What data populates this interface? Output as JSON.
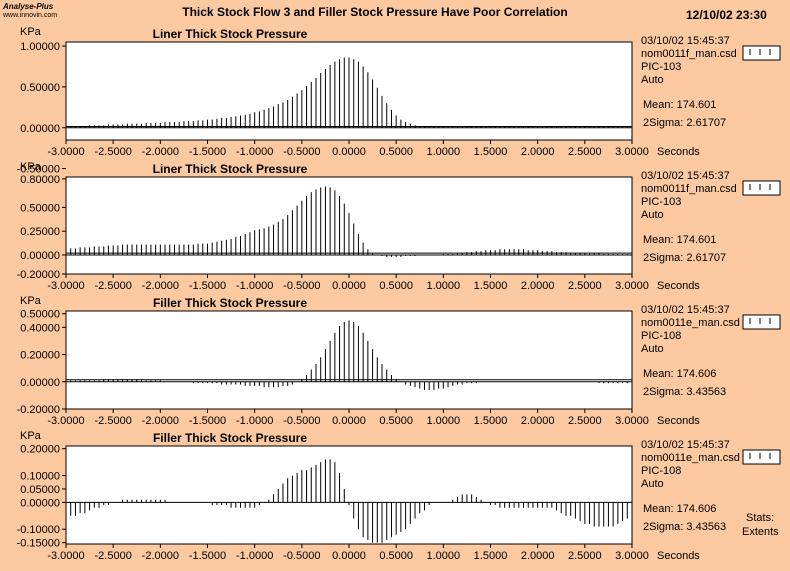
{
  "header": {
    "logo_line1": "Analyse-Plus",
    "logo_line2": "www.innovin.com",
    "title": "Thick Stock Flow 3 and Filler Stock Pressure Have Poor Correlation",
    "datetime": "12/10/02 23:30"
  },
  "footer": {
    "stats_label": "Stats:",
    "extents_label": "Extents"
  },
  "chart_data": [
    {
      "type": "bar",
      "title": "Liner Thick Stock Pressure",
      "ylabel": "KPa",
      "xlabel": "Seconds",
      "ylim": [
        -0.15,
        1.05
      ],
      "yticks": [
        "1.00000",
        "0.50000",
        "0.00000",
        "-0.50000"
      ],
      "ytick_values": [
        1.0,
        0.5,
        0.0,
        -0.5
      ],
      "xticks": [
        "-3.0000",
        "-2.5000",
        "-2.0000",
        "-1.5000",
        "-1.0000",
        "-0.5000",
        "0.0000",
        "0.5000",
        "1.0000",
        "1.5000",
        "2.0000",
        "2.5000",
        "3.0000"
      ],
      "x": [
        -2.95,
        -2.9,
        -2.85,
        -2.8,
        -2.75,
        -2.7,
        -2.65,
        -2.6,
        -2.55,
        -2.5,
        -2.45,
        -2.4,
        -2.35,
        -2.3,
        -2.25,
        -2.2,
        -2.15,
        -2.1,
        -2.05,
        -2.0,
        -1.95,
        -1.9,
        -1.85,
        -1.8,
        -1.75,
        -1.7,
        -1.65,
        -1.6,
        -1.55,
        -1.5,
        -1.45,
        -1.4,
        -1.35,
        -1.3,
        -1.25,
        -1.2,
        -1.15,
        -1.1,
        -1.05,
        -1.0,
        -0.95,
        -0.9,
        -0.85,
        -0.8,
        -0.75,
        -0.7,
        -0.65,
        -0.6,
        -0.55,
        -0.5,
        -0.45,
        -0.4,
        -0.35,
        -0.3,
        -0.25,
        -0.2,
        -0.15,
        -0.1,
        -0.05,
        0.0,
        0.05,
        0.1,
        0.15,
        0.2,
        0.25,
        0.3,
        0.35,
        0.4,
        0.45,
        0.5,
        0.55,
        0.6,
        0.65,
        0.7,
        0.75,
        0.8,
        0.85,
        0.9,
        0.95,
        1.0,
        1.05,
        1.1,
        1.15,
        1.2,
        1.25,
        1.3,
        1.35,
        1.4,
        1.45,
        1.5,
        1.55,
        1.6,
        1.65,
        1.7,
        1.75,
        1.8,
        1.85,
        1.9,
        1.95,
        2.0,
        2.05,
        2.1,
        2.15,
        2.2,
        2.25,
        2.3,
        2.35,
        2.4,
        2.45,
        2.5,
        2.55,
        2.6,
        2.65,
        2.7,
        2.75,
        2.8,
        2.85,
        2.9,
        2.95
      ],
      "values": [
        0.02,
        0.02,
        0.02,
        0.02,
        0.03,
        0.03,
        0.03,
        0.03,
        0.04,
        0.04,
        0.04,
        0.04,
        0.05,
        0.05,
        0.05,
        0.05,
        0.06,
        0.06,
        0.06,
        0.06,
        0.07,
        0.07,
        0.07,
        0.07,
        0.08,
        0.08,
        0.08,
        0.09,
        0.09,
        0.1,
        0.1,
        0.11,
        0.12,
        0.12,
        0.13,
        0.14,
        0.15,
        0.16,
        0.17,
        0.19,
        0.2,
        0.22,
        0.24,
        0.26,
        0.29,
        0.31,
        0.34,
        0.38,
        0.42,
        0.46,
        0.51,
        0.56,
        0.61,
        0.67,
        0.72,
        0.77,
        0.81,
        0.84,
        0.86,
        0.86,
        0.84,
        0.81,
        0.75,
        0.68,
        0.59,
        0.49,
        0.39,
        0.3,
        0.22,
        0.15,
        0.1,
        0.07,
        0.05,
        0.03,
        0.02,
        0.02,
        0.01,
        0.01,
        0.01,
        0.01,
        0.01,
        0.01,
        0.01,
        0.01,
        0.01,
        0.01,
        0.01,
        0.01,
        0.01,
        0.01,
        0.01,
        0.01,
        0.01,
        0.01,
        0.01,
        0.01,
        0.01,
        0.01,
        0.01,
        0.01,
        0.01,
        0.01,
        0.01,
        0.01,
        0.01,
        0.01,
        0.01,
        0.01,
        0.01,
        0.01,
        0.01,
        0.01,
        0.01,
        0.01,
        0.01,
        0.01,
        0.01,
        0.01,
        0.01
      ],
      "reference_line": 0.015,
      "info": {
        "timestamp": "03/10/02  15:45:37",
        "file": "nom0011f_man.csd",
        "tag": "PIC-103",
        "mode": "Auto",
        "mean": "Mean: 174.601",
        "sigma": "2Sigma: 2.61707"
      }
    },
    {
      "type": "bar",
      "title": "Liner Thick Stock Pressure",
      "ylabel": "KPa",
      "xlabel": "Seconds",
      "ylim": [
        -0.2,
        0.82
      ],
      "yticks": [
        "0.80000",
        "0.50000",
        "0.25000",
        "0.00000",
        "-0.20000"
      ],
      "ytick_values": [
        0.8,
        0.5,
        0.25,
        0.0,
        -0.2
      ],
      "xticks": [
        "-3.0000",
        "-2.5000",
        "-2.0000",
        "-1.5000",
        "-1.0000",
        "-0.5000",
        "0.0000",
        "0.5000",
        "1.0000",
        "1.5000",
        "2.0000",
        "2.5000",
        "3.0000"
      ],
      "x": [
        -2.95,
        -2.9,
        -2.85,
        -2.8,
        -2.75,
        -2.7,
        -2.65,
        -2.6,
        -2.55,
        -2.5,
        -2.45,
        -2.4,
        -2.35,
        -2.3,
        -2.25,
        -2.2,
        -2.15,
        -2.1,
        -2.05,
        -2.0,
        -1.95,
        -1.9,
        -1.85,
        -1.8,
        -1.75,
        -1.7,
        -1.65,
        -1.6,
        -1.55,
        -1.5,
        -1.45,
        -1.4,
        -1.35,
        -1.3,
        -1.25,
        -1.2,
        -1.15,
        -1.1,
        -1.05,
        -1.0,
        -0.95,
        -0.9,
        -0.85,
        -0.8,
        -0.75,
        -0.7,
        -0.65,
        -0.6,
        -0.55,
        -0.5,
        -0.45,
        -0.4,
        -0.35,
        -0.3,
        -0.25,
        -0.2,
        -0.15,
        -0.1,
        -0.05,
        0.0,
        0.05,
        0.1,
        0.15,
        0.2,
        0.25,
        0.3,
        0.35,
        0.4,
        0.45,
        0.5,
        0.55,
        0.6,
        0.65,
        0.7,
        0.75,
        0.8,
        0.85,
        0.9,
        0.95,
        1.0,
        1.05,
        1.1,
        1.15,
        1.2,
        1.25,
        1.3,
        1.35,
        1.4,
        1.45,
        1.5,
        1.55,
        1.6,
        1.65,
        1.7,
        1.75,
        1.8,
        1.85,
        1.9,
        1.95,
        2.0,
        2.05,
        2.1,
        2.15,
        2.2,
        2.25,
        2.3,
        2.35,
        2.4,
        2.45,
        2.5,
        2.55,
        2.6,
        2.65,
        2.7,
        2.75,
        2.8,
        2.85,
        2.9,
        2.95
      ],
      "values": [
        0.07,
        0.07,
        0.08,
        0.08,
        0.08,
        0.09,
        0.09,
        0.09,
        0.1,
        0.1,
        0.1,
        0.11,
        0.11,
        0.11,
        0.11,
        0.11,
        0.11,
        0.11,
        0.11,
        0.11,
        0.11,
        0.11,
        0.11,
        0.11,
        0.11,
        0.11,
        0.11,
        0.12,
        0.12,
        0.12,
        0.13,
        0.14,
        0.15,
        0.16,
        0.17,
        0.19,
        0.2,
        0.22,
        0.24,
        0.26,
        0.27,
        0.28,
        0.3,
        0.32,
        0.35,
        0.38,
        0.42,
        0.47,
        0.52,
        0.57,
        0.62,
        0.66,
        0.69,
        0.71,
        0.72,
        0.71,
        0.68,
        0.62,
        0.54,
        0.44,
        0.33,
        0.22,
        0.13,
        0.06,
        0.02,
        0.0,
        -0.01,
        -0.02,
        -0.02,
        -0.02,
        -0.02,
        -0.01,
        -0.01,
        -0.01,
        0.0,
        0.0,
        0.0,
        0.0,
        0.0,
        0.01,
        0.01,
        0.01,
        0.02,
        0.02,
        0.03,
        0.03,
        0.04,
        0.04,
        0.05,
        0.05,
        0.05,
        0.06,
        0.06,
        0.06,
        0.06,
        0.06,
        0.06,
        0.05,
        0.05,
        0.05,
        0.04,
        0.04,
        0.04,
        0.03,
        0.03,
        0.03,
        0.02,
        0.02,
        0.02,
        0.02,
        0.02,
        0.02,
        0.02,
        0.01,
        0.01,
        0.01,
        0.01,
        0.01,
        0.01
      ],
      "reference_line": 0.02,
      "info": {
        "timestamp": "03/10/02  15:45:37",
        "file": "nom0011f_man.csd",
        "tag": "PIC-103",
        "mode": "Auto",
        "mean": "Mean: 174.601",
        "sigma": "2Sigma: 2.61707"
      }
    },
    {
      "type": "bar",
      "title": "Filler Thick Stock Pressure",
      "ylabel": "KPa",
      "xlabel": "Seconds",
      "ylim": [
        -0.2,
        0.52
      ],
      "yticks": [
        "0.50000",
        "0.40000",
        "0.20000",
        "0.00000",
        "-0.20000"
      ],
      "ytick_values": [
        0.5,
        0.4,
        0.2,
        0.0,
        -0.2
      ],
      "xticks": [
        "-3.0000",
        "-2.5000",
        "-2.0000",
        "-1.5000",
        "-1.0000",
        "-0.5000",
        "0.0000",
        "0.5000",
        "1.0000",
        "1.5000",
        "2.0000",
        "2.5000",
        "3.0000"
      ],
      "x": [
        -2.95,
        -2.9,
        -2.85,
        -2.8,
        -2.75,
        -2.7,
        -2.65,
        -2.6,
        -2.55,
        -2.5,
        -2.45,
        -2.4,
        -2.35,
        -2.3,
        -2.25,
        -2.2,
        -2.15,
        -2.1,
        -2.05,
        -2.0,
        -1.95,
        -1.9,
        -1.85,
        -1.8,
        -1.75,
        -1.7,
        -1.65,
        -1.6,
        -1.55,
        -1.5,
        -1.45,
        -1.4,
        -1.35,
        -1.3,
        -1.25,
        -1.2,
        -1.15,
        -1.1,
        -1.05,
        -1.0,
        -0.95,
        -0.9,
        -0.85,
        -0.8,
        -0.75,
        -0.7,
        -0.65,
        -0.6,
        -0.55,
        -0.5,
        -0.45,
        -0.4,
        -0.35,
        -0.3,
        -0.25,
        -0.2,
        -0.15,
        -0.1,
        -0.05,
        0.0,
        0.05,
        0.1,
        0.15,
        0.2,
        0.25,
        0.3,
        0.35,
        0.4,
        0.45,
        0.5,
        0.55,
        0.6,
        0.65,
        0.7,
        0.75,
        0.8,
        0.85,
        0.9,
        0.95,
        1.0,
        1.05,
        1.1,
        1.15,
        1.2,
        1.25,
        1.3,
        1.35,
        1.4,
        1.45,
        1.5,
        1.55,
        1.6,
        1.65,
        1.7,
        1.75,
        1.8,
        1.85,
        1.9,
        1.95,
        2.0,
        2.05,
        2.1,
        2.15,
        2.2,
        2.25,
        2.3,
        2.35,
        2.4,
        2.45,
        2.5,
        2.55,
        2.6,
        2.65,
        2.7,
        2.75,
        2.8,
        2.85,
        2.9,
        2.95
      ],
      "values": [
        0.01,
        0.01,
        0.01,
        0.01,
        0.01,
        0.01,
        0.01,
        0.02,
        0.02,
        0.02,
        0.02,
        0.02,
        0.02,
        0.02,
        0.02,
        0.02,
        0.01,
        0.01,
        0.01,
        0.01,
        0.0,
        0.0,
        0.0,
        0.0,
        0.0,
        0.0,
        -0.01,
        -0.01,
        -0.01,
        -0.01,
        -0.01,
        -0.01,
        -0.02,
        -0.02,
        -0.02,
        -0.02,
        -0.02,
        -0.03,
        -0.03,
        -0.03,
        -0.03,
        -0.04,
        -0.04,
        -0.04,
        -0.04,
        -0.03,
        -0.03,
        -0.02,
        0.0,
        0.02,
        0.05,
        0.09,
        0.13,
        0.18,
        0.24,
        0.3,
        0.36,
        0.41,
        0.44,
        0.45,
        0.44,
        0.41,
        0.36,
        0.3,
        0.24,
        0.18,
        0.13,
        0.09,
        0.05,
        0.02,
        0.0,
        -0.02,
        -0.03,
        -0.04,
        -0.05,
        -0.06,
        -0.06,
        -0.06,
        -0.05,
        -0.05,
        -0.04,
        -0.03,
        -0.02,
        -0.02,
        -0.01,
        -0.01,
        -0.01,
        0.0,
        0.0,
        0.0,
        0.0,
        0.0,
        0.0,
        0.0,
        0.0,
        0.0,
        0.0,
        0.0,
        0.0,
        0.0,
        0.0,
        0.0,
        0.0,
        0.0,
        0.0,
        0.0,
        0.0,
        0.0,
        0.0,
        0.0,
        0.0,
        0.0,
        -0.01,
        -0.01,
        -0.01,
        -0.01,
        -0.01,
        -0.01,
        -0.01
      ],
      "reference_line": 0.015,
      "info": {
        "timestamp": "03/10/02  15:45:37",
        "file": "nom0011e_man.csd",
        "tag": "PIC-108",
        "mode": "Auto",
        "mean": "Mean: 174.606",
        "sigma": "2Sigma: 3.43563"
      }
    },
    {
      "type": "bar",
      "title": "Filler Thick Stock Pressure",
      "ylabel": "KPa",
      "xlabel": "Seconds",
      "ylim": [
        -0.155,
        0.21
      ],
      "yticks": [
        "0.20000",
        "0.10000",
        "0.05000",
        "0.00000",
        "-0.10000",
        "-0.15000"
      ],
      "ytick_values": [
        0.2,
        0.1,
        0.05,
        0.0,
        -0.1,
        -0.15
      ],
      "xticks": [
        "-3.0000",
        "-2.5000",
        "-2.0000",
        "-1.5000",
        "-1.0000",
        "-0.5000",
        "0.0000",
        "0.5000",
        "1.0000",
        "1.5000",
        "2.0000",
        "2.5000",
        "3.0000"
      ],
      "x": [
        -2.95,
        -2.9,
        -2.85,
        -2.8,
        -2.75,
        -2.7,
        -2.65,
        -2.6,
        -2.55,
        -2.5,
        -2.45,
        -2.4,
        -2.35,
        -2.3,
        -2.25,
        -2.2,
        -2.15,
        -2.1,
        -2.05,
        -2.0,
        -1.95,
        -1.9,
        -1.85,
        -1.8,
        -1.75,
        -1.7,
        -1.65,
        -1.6,
        -1.55,
        -1.5,
        -1.45,
        -1.4,
        -1.35,
        -1.3,
        -1.25,
        -1.2,
        -1.15,
        -1.1,
        -1.05,
        -1.0,
        -0.95,
        -0.9,
        -0.85,
        -0.8,
        -0.75,
        -0.7,
        -0.65,
        -0.6,
        -0.55,
        -0.5,
        -0.45,
        -0.4,
        -0.35,
        -0.3,
        -0.25,
        -0.2,
        -0.15,
        -0.1,
        -0.05,
        0.0,
        0.05,
        0.1,
        0.15,
        0.2,
        0.25,
        0.3,
        0.35,
        0.4,
        0.45,
        0.5,
        0.55,
        0.6,
        0.65,
        0.7,
        0.75,
        0.8,
        0.85,
        0.9,
        0.95,
        1.0,
        1.05,
        1.1,
        1.15,
        1.2,
        1.25,
        1.3,
        1.35,
        1.4,
        1.45,
        1.5,
        1.55,
        1.6,
        1.65,
        1.7,
        1.75,
        1.8,
        1.85,
        1.9,
        1.95,
        2.0,
        2.05,
        2.1,
        2.15,
        2.2,
        2.25,
        2.3,
        2.35,
        2.4,
        2.45,
        2.5,
        2.55,
        2.6,
        2.65,
        2.7,
        2.75,
        2.8,
        2.85,
        2.9,
        2.95
      ],
      "values": [
        -0.05,
        -0.05,
        -0.04,
        -0.04,
        -0.03,
        -0.02,
        -0.02,
        -0.01,
        -0.01,
        0.0,
        0.0,
        0.01,
        0.01,
        0.01,
        0.01,
        0.01,
        0.01,
        0.01,
        0.01,
        0.01,
        0.01,
        0.0,
        0.0,
        0.0,
        0.0,
        0.0,
        0.0,
        0.0,
        0.0,
        0.0,
        -0.01,
        -0.01,
        -0.01,
        -0.01,
        -0.02,
        -0.02,
        -0.02,
        -0.02,
        -0.02,
        -0.02,
        -0.01,
        0.0,
        0.01,
        0.03,
        0.05,
        0.07,
        0.09,
        0.1,
        0.11,
        0.12,
        0.12,
        0.13,
        0.14,
        0.15,
        0.16,
        0.16,
        0.15,
        0.11,
        0.05,
        -0.01,
        -0.06,
        -0.1,
        -0.13,
        -0.14,
        -0.15,
        -0.15,
        -0.15,
        -0.14,
        -0.13,
        -0.12,
        -0.11,
        -0.1,
        -0.08,
        -0.06,
        -0.04,
        -0.03,
        -0.01,
        0.0,
        0.0,
        0.0,
        0.0,
        0.01,
        0.02,
        0.03,
        0.03,
        0.03,
        0.02,
        0.01,
        0.0,
        -0.01,
        -0.01,
        -0.02,
        -0.02,
        -0.02,
        -0.02,
        -0.02,
        -0.02,
        -0.02,
        -0.02,
        -0.02,
        -0.02,
        -0.02,
        -0.02,
        -0.03,
        -0.04,
        -0.05,
        -0.05,
        -0.06,
        -0.07,
        -0.08,
        -0.08,
        -0.09,
        -0.09,
        -0.09,
        -0.09,
        -0.09,
        -0.08,
        -0.07,
        -0.06
      ],
      "reference_line": 0.0,
      "info": {
        "timestamp": "03/10/02  15:45:37",
        "file": "nom0011e_man.csd",
        "tag": "PIC-108",
        "mode": "Auto",
        "mean": "Mean: 174.606",
        "sigma": "2Sigma: 3.43563"
      }
    }
  ]
}
